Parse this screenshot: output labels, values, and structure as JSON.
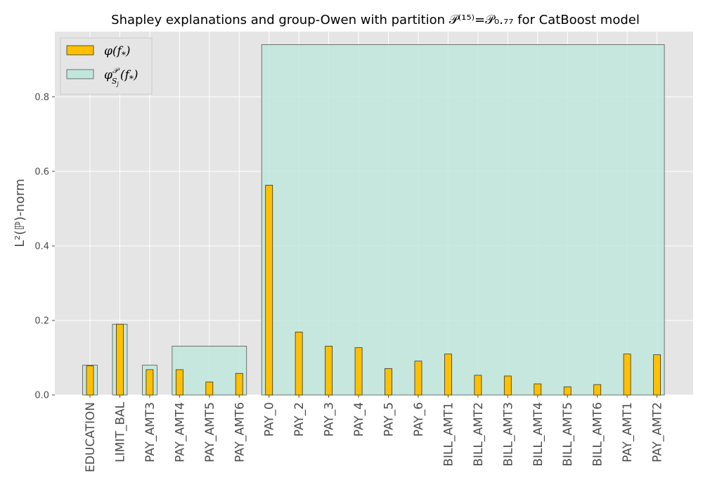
{
  "chart_data": {
    "type": "bar",
    "title": "Shapley explanations and group-Owen with partition 𝒫⁽¹⁵⁾=𝒫₀.₇₇ for CatBoost model",
    "xlabel": "",
    "ylabel": "L²(ℙ)-norm",
    "ylim": [
      0,
      0.975
    ],
    "yticks": [
      "0.0",
      "0.2",
      "0.4",
      "0.6",
      "0.8"
    ],
    "grid": true,
    "legend_position": "top-left",
    "categories": [
      "EDUCATION",
      "LIMIT_BAL",
      "PAY_AMT3",
      "PAY_AMT4",
      "PAY_AMT5",
      "PAY_AMT6",
      "PAY_0",
      "PAY_2",
      "PAY_3",
      "PAY_4",
      "PAY_5",
      "PAY_6",
      "BILL_AMT1",
      "BILL_AMT2",
      "BILL_AMT3",
      "BILL_AMT4",
      "BILL_AMT5",
      "BILL_AMT6",
      "PAY_AMT1",
      "PAY_AMT2"
    ],
    "series": [
      {
        "name": "φ(f*)",
        "color": "#FFC000",
        "values": [
          0.078,
          0.19,
          0.068,
          0.068,
          0.035,
          0.058,
          0.563,
          0.169,
          0.131,
          0.127,
          0.071,
          0.091,
          0.11,
          0.053,
          0.051,
          0.03,
          0.022,
          0.028,
          0.11,
          0.108
        ]
      },
      {
        "name": "φ^𝒫_{S_j}(f*)",
        "color": "#BFE7DC",
        "type": "group",
        "groups": [
          {
            "first": "EDUCATION",
            "last": "EDUCATION",
            "value": 0.08
          },
          {
            "first": "LIMIT_BAL",
            "last": "LIMIT_BAL",
            "value": 0.19
          },
          {
            "first": "PAY_AMT3",
            "last": "PAY_AMT3",
            "value": 0.08
          },
          {
            "first": "PAY_AMT4",
            "last": "PAY_AMT6",
            "value": 0.131
          },
          {
            "first": "PAY_0",
            "last": "PAY_AMT2",
            "value": 0.94
          }
        ]
      }
    ],
    "legend": {
      "entries": [
        {
          "text_main": "φ(f",
          "text_sub": "*",
          "text_end": ")",
          "color": "#FFC000"
        },
        {
          "text_main": "φ",
          "text_sup": "𝒫",
          "text_sub": "S",
          "text_subsub": "j",
          "text_end": "(f",
          "text_sub2": "*",
          "text_end2": ")",
          "color": "#BFE7DC"
        }
      ]
    },
    "colors": {
      "background": "#E5E5E5",
      "grid": "#FFFFFF",
      "bar_primary": "#FFC000",
      "bar_group": "#BFE7DC",
      "edge": "#333333"
    }
  }
}
